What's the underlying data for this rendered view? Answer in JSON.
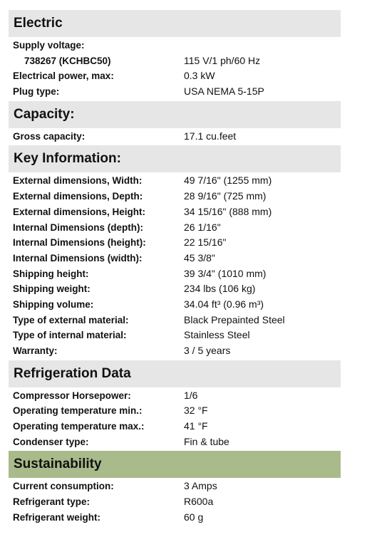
{
  "sections": [
    {
      "title": "Electric",
      "rows": [
        {
          "label": "Supply voltage:"
        },
        {
          "label": "738267 (KCHBC50)",
          "value": "115 V/1 ph/60 Hz"
        },
        {
          "label": "Electrical power, max:",
          "value": "0.3 kW"
        },
        {
          "label": "Plug type:",
          "value": "USA NEMA 5-15P"
        }
      ]
    },
    {
      "title": "Capacity:",
      "rows": [
        {
          "label": "Gross capacity:",
          "value": "17.1 cu.feet"
        }
      ]
    },
    {
      "title": "Key Information:",
      "rows": [
        {
          "label": "External dimensions, Width:",
          "value": "49 7/16\" (1255 mm)"
        },
        {
          "label": "External dimensions, Depth:",
          "value": "28 9/16\" (725 mm)"
        },
        {
          "label": "External dimensions, Height:",
          "value": "34 15/16\" (888 mm)"
        },
        {
          "label": "Internal Dimensions (depth):",
          "value": "26 1/16\""
        },
        {
          "label": "Internal Dimensions (height):",
          "value": "22 15/16\""
        },
        {
          "label": "Internal Dimensions (width):",
          "value": "45 3/8\""
        },
        {
          "label": "Shipping height:",
          "value": "39 3/4\" (1010 mm)"
        },
        {
          "label": "Shipping weight:",
          "value": "234 lbs (106 kg)"
        },
        {
          "label": "Shipping volume:",
          "value": "34.04 ft³ (0.96 m³)"
        },
        {
          "label": "Type of external material:",
          "value": "Black Prepainted Steel"
        },
        {
          "label": "Type of internal material:",
          "value": "Stainless Steel"
        },
        {
          "label": "Warranty:",
          "value": "3 / 5 years"
        }
      ]
    },
    {
      "title": "Refrigeration Data",
      "rows": [
        {
          "label": "Compressor Horsepower:",
          "value": "1/6"
        },
        {
          "label": "Operating temperature min.:",
          "value": "32 °F"
        },
        {
          "label": "Operating temperature max.:",
          "value": "41 °F"
        },
        {
          "label": "Condenser type:",
          "value": "Fin & tube"
        }
      ]
    },
    {
      "title": "Sustainability",
      "rows": [
        {
          "label": "Current consumption:",
          "value": "3 Amps"
        },
        {
          "label": "Refrigerant type:",
          "value": "R600a"
        },
        {
          "label": "Refrigerant weight:",
          "value": "60 g"
        }
      ]
    }
  ]
}
